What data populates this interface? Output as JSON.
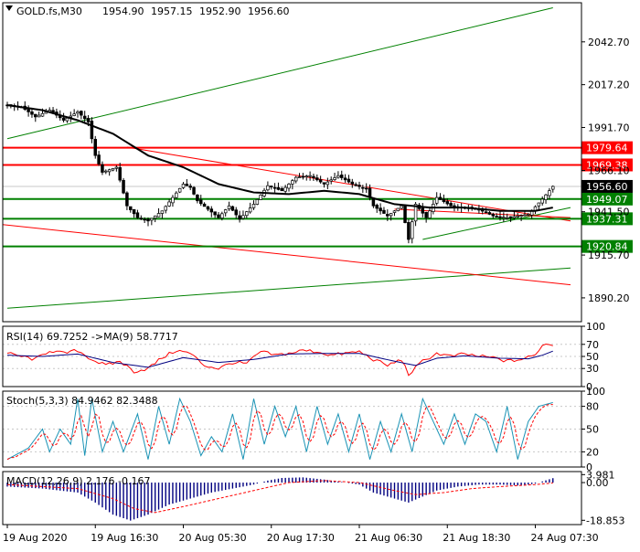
{
  "chart_data": {
    "type": "candlestick",
    "title": "GOLD.fs,M30",
    "ohlc": [
      "1954.90",
      "1957.15",
      "1952.90",
      "1956.60"
    ],
    "price_axis": {
      "ticks": [
        2042.7,
        2017.2,
        1991.7,
        1966.1,
        1941.5,
        1915.7,
        1890.2
      ],
      "tick_labels": [
        "2042.70",
        "2017.20",
        "1991.70",
        "1966.10",
        "1941.50",
        "1915.70",
        "1890.20"
      ],
      "ylim": [
        1876,
        2066
      ]
    },
    "levels": [
      {
        "value": 1979.64,
        "label": "1979.64",
        "color": "#ff0000"
      },
      {
        "value": 1969.38,
        "label": "1969.38",
        "color": "#ff0000"
      },
      {
        "value": 1949.07,
        "label": "1949.07",
        "color": "#008000"
      },
      {
        "value": 1937.31,
        "label": "1937.31",
        "color": "#008000"
      },
      {
        "value": 1920.84,
        "label": "1920.84",
        "color": "#008000"
      }
    ],
    "current_price": {
      "value": 1956.6,
      "label": "1956.60"
    },
    "time_axis": {
      "labels": [
        "19 Aug 2020",
        "19 Aug 16:30",
        "20 Aug 05:30",
        "20 Aug 17:30",
        "21 Aug 06:30",
        "21 Aug 18:30",
        "24 Aug 07:30"
      ],
      "label_bars": [
        0,
        25,
        50,
        75,
        100,
        125,
        150
      ]
    },
    "bar_count": 156,
    "anchors": [
      [
        0,
        2005
      ],
      [
        4,
        2004
      ],
      [
        8,
        1998
      ],
      [
        12,
        2002
      ],
      [
        16,
        1996
      ],
      [
        20,
        2001
      ],
      [
        23,
        1995
      ],
      [
        25,
        1975
      ],
      [
        27,
        1965
      ],
      [
        31,
        1968
      ],
      [
        34,
        1945
      ],
      [
        37,
        1938
      ],
      [
        40,
        1936
      ],
      [
        44,
        1942
      ],
      [
        47,
        1950
      ],
      [
        50,
        1958
      ],
      [
        52,
        1956
      ],
      [
        54,
        1948
      ],
      [
        57,
        1943
      ],
      [
        60,
        1938
      ],
      [
        63,
        1945
      ],
      [
        66,
        1937
      ],
      [
        70,
        1946
      ],
      [
        74,
        1957
      ],
      [
        78,
        1954
      ],
      [
        82,
        1962
      ],
      [
        86,
        1963
      ],
      [
        90,
        1958
      ],
      [
        94,
        1963
      ],
      [
        98,
        1958
      ],
      [
        102,
        1955
      ],
      [
        104,
        1945
      ],
      [
        108,
        1939
      ],
      [
        112,
        1945
      ],
      [
        114,
        1925
      ],
      [
        116,
        1946
      ],
      [
        119,
        1938
      ],
      [
        122,
        1950
      ],
      [
        126,
        1945
      ],
      [
        130,
        1944
      ],
      [
        134,
        1943
      ],
      [
        138,
        1939
      ],
      [
        142,
        1938
      ],
      [
        145,
        1939
      ],
      [
        148,
        1940
      ],
      [
        152,
        1949
      ],
      [
        155,
        1956.6
      ]
    ],
    "ma": {
      "name": "",
      "color": "#000000",
      "anchors": [
        [
          0,
          2005
        ],
        [
          10,
          2002
        ],
        [
          20,
          1996
        ],
        [
          30,
          1988
        ],
        [
          40,
          1975
        ],
        [
          50,
          1968
        ],
        [
          60,
          1958
        ],
        [
          70,
          1953
        ],
        [
          80,
          1952
        ],
        [
          90,
          1954
        ],
        [
          100,
          1952
        ],
        [
          110,
          1946
        ],
        [
          120,
          1944
        ],
        [
          130,
          1944
        ],
        [
          140,
          1942
        ],
        [
          150,
          1942
        ],
        [
          155,
          1944
        ]
      ]
    },
    "trend_lines": [
      {
        "color": "#008000",
        "points": [
          [
            0,
            1985
          ],
          [
            155,
            2063
          ]
        ]
      },
      {
        "color": "#008000",
        "points": [
          [
            0,
            1884
          ],
          [
            160,
            1908
          ]
        ]
      },
      {
        "color": "#ff0000",
        "points": [
          [
            -2,
            1934
          ],
          [
            160,
            1898
          ]
        ]
      },
      {
        "color": "#ff0000",
        "points": [
          [
            34,
            1980
          ],
          [
            160,
            1936
          ]
        ]
      },
      {
        "color": "#008000",
        "points": [
          [
            118,
            1925
          ],
          [
            160,
            1944
          ]
        ]
      },
      {
        "color": "#ff0000",
        "points": [
          [
            110,
            1943
          ],
          [
            160,
            1938
          ]
        ]
      }
    ],
    "rsi": {
      "label": "RSI(14) 69.7252  ->MA(9) 58.7717",
      "ticks": [
        100,
        70,
        50,
        30,
        0
      ],
      "ylim": [
        0,
        100
      ],
      "anchors": [
        [
          0,
          55
        ],
        [
          8,
          45
        ],
        [
          12,
          60
        ],
        [
          16,
          55
        ],
        [
          20,
          60
        ],
        [
          24,
          45
        ],
        [
          28,
          35
        ],
        [
          32,
          42
        ],
        [
          36,
          25
        ],
        [
          40,
          30
        ],
        [
          44,
          48
        ],
        [
          48,
          60
        ],
        [
          52,
          55
        ],
        [
          56,
          35
        ],
        [
          60,
          30
        ],
        [
          64,
          40
        ],
        [
          68,
          38
        ],
        [
          72,
          58
        ],
        [
          76,
          52
        ],
        [
          80,
          55
        ],
        [
          84,
          60
        ],
        [
          88,
          58
        ],
        [
          92,
          52
        ],
        [
          96,
          55
        ],
        [
          100,
          58
        ],
        [
          104,
          45
        ],
        [
          108,
          35
        ],
        [
          112,
          45
        ],
        [
          114,
          20
        ],
        [
          118,
          42
        ],
        [
          122,
          55
        ],
        [
          126,
          50
        ],
        [
          130,
          54
        ],
        [
          134,
          50
        ],
        [
          138,
          48
        ],
        [
          142,
          42
        ],
        [
          146,
          45
        ],
        [
          150,
          52
        ],
        [
          152,
          70
        ],
        [
          155,
          69.7
        ]
      ],
      "ma_anchors": [
        [
          0,
          52
        ],
        [
          10,
          50
        ],
        [
          20,
          54
        ],
        [
          30,
          40
        ],
        [
          40,
          32
        ],
        [
          50,
          48
        ],
        [
          60,
          40
        ],
        [
          70,
          45
        ],
        [
          80,
          54
        ],
        [
          90,
          55
        ],
        [
          100,
          55
        ],
        [
          110,
          42
        ],
        [
          116,
          35
        ],
        [
          122,
          47
        ],
        [
          130,
          51
        ],
        [
          140,
          47
        ],
        [
          148,
          46
        ],
        [
          152,
          52
        ],
        [
          155,
          58.8
        ]
      ]
    },
    "stoch": {
      "label": "Stoch(5,3,3) 84.9462 82.3488",
      "ticks": [
        100,
        80,
        50,
        20,
        0
      ],
      "ylim": [
        0,
        100
      ],
      "anchors": [
        [
          0,
          10
        ],
        [
          6,
          25
        ],
        [
          10,
          50
        ],
        [
          12,
          20
        ],
        [
          15,
          50
        ],
        [
          18,
          30
        ],
        [
          20,
          90
        ],
        [
          22,
          15
        ],
        [
          24,
          90
        ],
        [
          27,
          20
        ],
        [
          30,
          60
        ],
        [
          33,
          20
        ],
        [
          37,
          70
        ],
        [
          40,
          10
        ],
        [
          43,
          80
        ],
        [
          46,
          30
        ],
        [
          49,
          90
        ],
        [
          52,
          60
        ],
        [
          55,
          15
        ],
        [
          58,
          40
        ],
        [
          61,
          20
        ],
        [
          64,
          70
        ],
        [
          67,
          10
        ],
        [
          70,
          90
        ],
        [
          73,
          30
        ],
        [
          76,
          80
        ],
        [
          79,
          40
        ],
        [
          82,
          80
        ],
        [
          85,
          20
        ],
        [
          88,
          80
        ],
        [
          91,
          30
        ],
        [
          94,
          70
        ],
        [
          97,
          20
        ],
        [
          100,
          70
        ],
        [
          103,
          10
        ],
        [
          106,
          60
        ],
        [
          109,
          20
        ],
        [
          112,
          70
        ],
        [
          115,
          20
        ],
        [
          118,
          90
        ],
        [
          121,
          60
        ],
        [
          124,
          30
        ],
        [
          127,
          70
        ],
        [
          130,
          30
        ],
        [
          133,
          70
        ],
        [
          136,
          60
        ],
        [
          139,
          20
        ],
        [
          142,
          80
        ],
        [
          145,
          10
        ],
        [
          148,
          60
        ],
        [
          151,
          80
        ],
        [
          155,
          85
        ]
      ],
      "signal_lag": 2,
      "signal_last": 82.35
    },
    "macd": {
      "label": "MACD(12,26,9) 2.176 -0.167",
      "tick_labels": [
        "3.981",
        "0.00",
        "-18.853"
      ],
      "ticks": [
        3.981,
        0,
        -18.853
      ],
      "ylim": [
        -21,
        5.5
      ],
      "anchors": [
        [
          0,
          -2
        ],
        [
          10,
          -3
        ],
        [
          20,
          -5
        ],
        [
          25,
          -10
        ],
        [
          30,
          -16
        ],
        [
          35,
          -19
        ],
        [
          40,
          -16
        ],
        [
          46,
          -11
        ],
        [
          52,
          -8
        ],
        [
          58,
          -5
        ],
        [
          64,
          -3
        ],
        [
          70,
          -1
        ],
        [
          74,
          1
        ],
        [
          78,
          2.3
        ],
        [
          84,
          2.6
        ],
        [
          90,
          1.5
        ],
        [
          96,
          0
        ],
        [
          100,
          -1
        ],
        [
          104,
          -5
        ],
        [
          110,
          -8
        ],
        [
          114,
          -10
        ],
        [
          118,
          -7
        ],
        [
          122,
          -4
        ],
        [
          128,
          -2
        ],
        [
          134,
          -1
        ],
        [
          140,
          -1
        ],
        [
          146,
          -1.5
        ],
        [
          150,
          -0.5
        ],
        [
          155,
          2.2
        ]
      ],
      "signal_anchors": [
        [
          0,
          -1
        ],
        [
          20,
          -3
        ],
        [
          30,
          -8
        ],
        [
          36,
          -13
        ],
        [
          42,
          -15
        ],
        [
          50,
          -12
        ],
        [
          60,
          -8
        ],
        [
          70,
          -4
        ],
        [
          80,
          0
        ],
        [
          90,
          1
        ],
        [
          100,
          0
        ],
        [
          110,
          -4
        ],
        [
          116,
          -6
        ],
        [
          124,
          -5
        ],
        [
          132,
          -3
        ],
        [
          140,
          -2
        ],
        [
          150,
          -1
        ],
        [
          155,
          -0.2
        ]
      ]
    }
  }
}
